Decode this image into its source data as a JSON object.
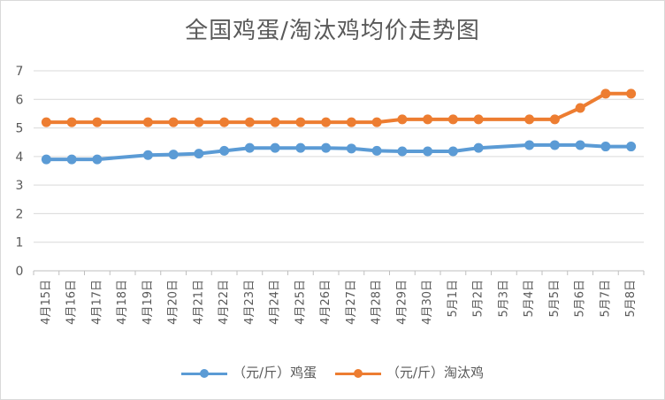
{
  "chart_data": {
    "type": "line",
    "title": "全国鸡蛋/淘汰鸡均价走势图",
    "xlabel": "",
    "ylabel": "",
    "ylim": [
      0,
      7
    ],
    "yticks": [
      "0",
      "1",
      "2",
      "3",
      "4",
      "5",
      "6",
      "7"
    ],
    "grid": true,
    "legend_position": "bottom",
    "categories": [
      "4月15日",
      "4月16日",
      "4月17日",
      "4月18日",
      "4月19日",
      "4月20日",
      "4月21日",
      "4月22日",
      "4月23日",
      "4月24日",
      "4月25日",
      "4月26日",
      "4月27日",
      "4月28日",
      "4月29日",
      "4月30日",
      "5月1日",
      "5月2日",
      "5月3日",
      "5月4日",
      "5月5日",
      "5月6日",
      "5月7日",
      "5月8日"
    ],
    "series": [
      {
        "name": "（元/斤）鸡蛋",
        "color": "#5b9bd5",
        "values": [
          3.9,
          3.9,
          3.9,
          null,
          4.05,
          4.07,
          4.1,
          4.2,
          4.3,
          4.3,
          4.3,
          4.3,
          4.28,
          4.2,
          4.18,
          4.18,
          4.18,
          4.3,
          null,
          4.4,
          4.4,
          4.4,
          4.35,
          4.35
        ]
      },
      {
        "name": "（元/斤）淘汰鸡",
        "color": "#ed7d31",
        "values": [
          5.2,
          5.2,
          5.2,
          null,
          5.2,
          5.2,
          5.2,
          5.2,
          5.2,
          5.2,
          5.2,
          5.2,
          5.2,
          5.2,
          5.3,
          5.3,
          5.3,
          5.3,
          null,
          5.3,
          5.3,
          5.7,
          6.2,
          6.2
        ]
      }
    ]
  }
}
